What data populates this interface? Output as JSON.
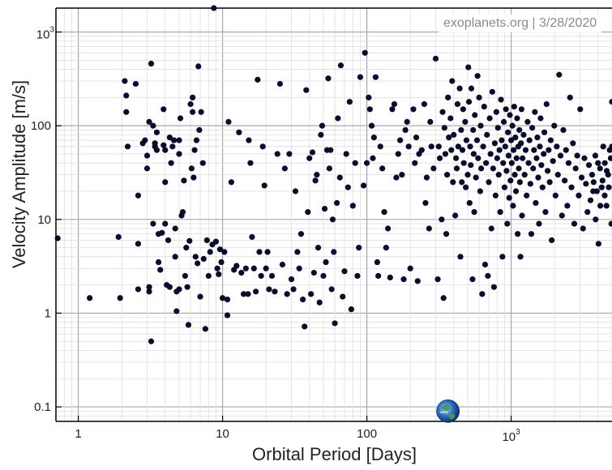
{
  "watermark": "exoplanets.org | 3/28/2020",
  "chart_data": {
    "type": "scatter",
    "title": "",
    "xlabel": "Orbital Period [Days]",
    "ylabel": "Velocity Amplitude [m/s]",
    "x_scale": "log",
    "y_scale": "log",
    "xlim": [
      0.7,
      5000
    ],
    "ylim": [
      0.07,
      1800
    ],
    "grid": true,
    "x_ticks": [
      {
        "value": 1,
        "label": "1"
      },
      {
        "value": 10,
        "label": "10"
      },
      {
        "value": 100,
        "label": "100"
      },
      {
        "value": 1000,
        "label": "10",
        "sup": "3"
      }
    ],
    "y_ticks": [
      {
        "value": 0.1,
        "label": "0.1"
      },
      {
        "value": 1,
        "label": "1"
      },
      {
        "value": 10,
        "label": "10"
      },
      {
        "value": 100,
        "label": "100"
      },
      {
        "value": 1000,
        "label": "10",
        "sup": "3"
      }
    ],
    "marker_color": "#0b0b2a",
    "earth_marker": {
      "x": 365,
      "y": 0.09,
      "label": "Earth"
    },
    "points": [
      [
        0.72,
        6.3
      ],
      [
        1.2,
        1.45
      ],
      [
        1.9,
        6.5
      ],
      [
        1.95,
        1.45
      ],
      [
        2.1,
        300
      ],
      [
        2.15,
        210
      ],
      [
        2.15,
        140
      ],
      [
        2.2,
        60
      ],
      [
        2.5,
        280
      ],
      [
        2.6,
        18
      ],
      [
        2.6,
        5.5
      ],
      [
        2.6,
        1.8
      ],
      [
        2.8,
        65
      ],
      [
        2.9,
        70
      ],
      [
        3.0,
        35
      ],
      [
        3.0,
        48
      ],
      [
        3.1,
        1.7
      ],
      [
        3.1,
        1.9
      ],
      [
        3.1,
        110
      ],
      [
        3.2,
        460
      ],
      [
        3.2,
        0.5
      ],
      [
        3.3,
        9
      ],
      [
        3.3,
        100
      ],
      [
        3.4,
        60
      ],
      [
        3.4,
        65
      ],
      [
        3.5,
        85
      ],
      [
        3.5,
        55
      ],
      [
        3.6,
        3.5
      ],
      [
        3.6,
        7
      ],
      [
        3.7,
        2.9
      ],
      [
        3.8,
        7.2
      ],
      [
        3.9,
        150
      ],
      [
        3.9,
        62
      ],
      [
        4.0,
        9
      ],
      [
        4.0,
        25
      ],
      [
        4.0,
        55
      ],
      [
        4.1,
        2
      ],
      [
        4.2,
        6
      ],
      [
        4.3,
        1.9
      ],
      [
        4.3,
        75
      ],
      [
        4.4,
        40
      ],
      [
        4.5,
        60
      ],
      [
        4.6,
        70
      ],
      [
        4.7,
        8
      ],
      [
        4.7,
        4
      ],
      [
        4.8,
        1.05
      ],
      [
        4.8,
        1.7
      ],
      [
        5.0,
        1.8
      ],
      [
        5.0,
        50
      ],
      [
        5.0,
        70
      ],
      [
        5.1,
        120
      ],
      [
        5.2,
        11
      ],
      [
        5.3,
        12
      ],
      [
        5.4,
        26
      ],
      [
        5.5,
        2.5
      ],
      [
        5.6,
        5
      ],
      [
        5.7,
        1.9
      ],
      [
        5.8,
        0.75
      ],
      [
        5.9,
        5.9
      ],
      [
        6.0,
        170
      ],
      [
        6.1,
        35
      ],
      [
        6.2,
        200
      ],
      [
        6.2,
        140
      ],
      [
        6.3,
        28
      ],
      [
        6.4,
        55
      ],
      [
        6.5,
        4
      ],
      [
        6.6,
        70
      ],
      [
        6.7,
        3.4
      ],
      [
        6.8,
        430
      ],
      [
        6.9,
        90
      ],
      [
        7.0,
        1.5
      ],
      [
        7.1,
        140
      ],
      [
        7.3,
        40
      ],
      [
        7.4,
        3.8
      ],
      [
        7.6,
        0.68
      ],
      [
        7.8,
        6
      ],
      [
        8.0,
        2.5
      ],
      [
        8.2,
        4.5
      ],
      [
        8.5,
        5.4
      ],
      [
        8.7,
        1800
      ],
      [
        9.0,
        5.8
      ],
      [
        9.2,
        3
      ],
      [
        9.4,
        2.6
      ],
      [
        9.6,
        4.8
      ],
      [
        9.8,
        3.5
      ],
      [
        10.0,
        1.45
      ],
      [
        10.3,
        4.5
      ],
      [
        10.8,
        1.4
      ],
      [
        10.8,
        0.95
      ],
      [
        11.0,
        110
      ],
      [
        11.5,
        25
      ],
      [
        12.0,
        2.9
      ],
      [
        12.5,
        3.2
      ],
      [
        13.0,
        85
      ],
      [
        13.5,
        2.7
      ],
      [
        14.0,
        1.6
      ],
      [
        14.5,
        3
      ],
      [
        15.0,
        1.6
      ],
      [
        15.2,
        70
      ],
      [
        15.6,
        40
      ],
      [
        16.0,
        6.5
      ],
      [
        16.5,
        3
      ],
      [
        17.0,
        1.7
      ],
      [
        17.5,
        310
      ],
      [
        18.0,
        4.5
      ],
      [
        18.5,
        2.5
      ],
      [
        19.0,
        60
      ],
      [
        19.5,
        23
      ],
      [
        20.0,
        3
      ],
      [
        20.5,
        4.5
      ],
      [
        21.0,
        1.8
      ],
      [
        22.0,
        2.5
      ],
      [
        23.0,
        1.7
      ],
      [
        24.0,
        50
      ],
      [
        25.0,
        280
      ],
      [
        26.0,
        3.3
      ],
      [
        27.0,
        35
      ],
      [
        28.0,
        1.6
      ],
      [
        29.0,
        50
      ],
      [
        30.0,
        2.3
      ],
      [
        31.0,
        1.8
      ],
      [
        32.0,
        20
      ],
      [
        33.0,
        4.5
      ],
      [
        34.0,
        3
      ],
      [
        35.0,
        7
      ],
      [
        36.0,
        1.4
      ],
      [
        37.0,
        0.72
      ],
      [
        38.0,
        240
      ],
      [
        39.0,
        12
      ],
      [
        40.0,
        45
      ],
      [
        41.0,
        1.6
      ],
      [
        42.0,
        52
      ],
      [
        43.0,
        2.7
      ],
      [
        44.0,
        26
      ],
      [
        45.0,
        30
      ],
      [
        46.0,
        5
      ],
      [
        47.0,
        1.3
      ],
      [
        48.0,
        80
      ],
      [
        49.0,
        100
      ],
      [
        50.0,
        2.5
      ],
      [
        51.0,
        13
      ],
      [
        52.0,
        3.5
      ],
      [
        53.0,
        55
      ],
      [
        54.0,
        320
      ],
      [
        55.0,
        35
      ],
      [
        56.0,
        55
      ],
      [
        57.0,
        1.8
      ],
      [
        58.0,
        10
      ],
      [
        59.0,
        4.5
      ],
      [
        60.0,
        0.78
      ],
      [
        62.0,
        15
      ],
      [
        63.0,
        120
      ],
      [
        65.0,
        28
      ],
      [
        66.0,
        440
      ],
      [
        68.0,
        1.5
      ],
      [
        70.0,
        2.8
      ],
      [
        72.0,
        50
      ],
      [
        74.0,
        22
      ],
      [
        76.0,
        180
      ],
      [
        78.0,
        1.1
      ],
      [
        80.0,
        14
      ],
      [
        83.0,
        40
      ],
      [
        86.0,
        2.5
      ],
      [
        88.0,
        5
      ],
      [
        90.0,
        330
      ],
      [
        95.0,
        23
      ],
      [
        97.0,
        600
      ],
      [
        100.0,
        40
      ],
      [
        103.0,
        200
      ],
      [
        105.0,
        150
      ],
      [
        108.0,
        100
      ],
      [
        110.0,
        45
      ],
      [
        112.0,
        75
      ],
      [
        115.0,
        330
      ],
      [
        118.0,
        3.5
      ],
      [
        120.0,
        2.5
      ],
      [
        124.0,
        60
      ],
      [
        128.0,
        35
      ],
      [
        132.0,
        12
      ],
      [
        136.0,
        5
      ],
      [
        140.0,
        8
      ],
      [
        145.0,
        2.4
      ],
      [
        150.0,
        150
      ],
      [
        155.0,
        170
      ],
      [
        160.0,
        28
      ],
      [
        165.0,
        50
      ],
      [
        170.0,
        70
      ],
      [
        175.0,
        30
      ],
      [
        180.0,
        2.3
      ],
      [
        185.0,
        90
      ],
      [
        190.0,
        110
      ],
      [
        195.0,
        60
      ],
      [
        200.0,
        3
      ],
      [
        210.0,
        150
      ],
      [
        215.0,
        40
      ],
      [
        220.0,
        75
      ],
      [
        225.0,
        2.2
      ],
      [
        230.0,
        50
      ],
      [
        240.0,
        55
      ],
      [
        250.0,
        170
      ],
      [
        255.0,
        15
      ],
      [
        260.0,
        28
      ],
      [
        270.0,
        8
      ],
      [
        275.0,
        110
      ],
      [
        280.0,
        60
      ],
      [
        290.0,
        35
      ],
      [
        300.0,
        520
      ],
      [
        310.0,
        2.3
      ],
      [
        315.0,
        60
      ],
      [
        320.0,
        45
      ],
      [
        330.0,
        10
      ],
      [
        335.0,
        140
      ],
      [
        340.0,
        1.45
      ],
      [
        345.0,
        95
      ],
      [
        350.0,
        50
      ],
      [
        355.0,
        7
      ],
      [
        360.0,
        30
      ],
      [
        365.0,
        200
      ],
      [
        370.0,
        75
      ],
      [
        380.0,
        120
      ],
      [
        385.0,
        55
      ],
      [
        390.0,
        300
      ],
      [
        395.0,
        25
      ],
      [
        400.0,
        80
      ],
      [
        410.0,
        11
      ],
      [
        415.0,
        45
      ],
      [
        420.0,
        35
      ],
      [
        425.0,
        170
      ],
      [
        430.0,
        60
      ],
      [
        440.0,
        250
      ],
      [
        445.0,
        4
      ],
      [
        450.0,
        90
      ],
      [
        455.0,
        25
      ],
      [
        460.0,
        55
      ],
      [
        465.0,
        150
      ],
      [
        470.0,
        40
      ],
      [
        480.0,
        110
      ],
      [
        485.0,
        22
      ],
      [
        490.0,
        70
      ],
      [
        500.0,
        30
      ],
      [
        505.0,
        420
      ],
      [
        510.0,
        180
      ],
      [
        515.0,
        15
      ],
      [
        520.0,
        60
      ],
      [
        525.0,
        38
      ],
      [
        530.0,
        250
      ],
      [
        540.0,
        2.3
      ],
      [
        545.0,
        90
      ],
      [
        550.0,
        50
      ],
      [
        555.0,
        12
      ],
      [
        560.0,
        130
      ],
      [
        570.0,
        28
      ],
      [
        580.0,
        70
      ],
      [
        585.0,
        340
      ],
      [
        590.0,
        45
      ],
      [
        600.0,
        200
      ],
      [
        610.0,
        20
      ],
      [
        615.0,
        100
      ],
      [
        620.0,
        35
      ],
      [
        630.0,
        1.6
      ],
      [
        640.0,
        60
      ],
      [
        650.0,
        160
      ],
      [
        660.0,
        3.3
      ],
      [
        670.0,
        40
      ],
      [
        680.0,
        80
      ],
      [
        690.0,
        2.5
      ],
      [
        700.0,
        25
      ],
      [
        710.0,
        120
      ],
      [
        720.0,
        50
      ],
      [
        730.0,
        8
      ],
      [
        740.0,
        230
      ],
      [
        750.0,
        35
      ],
      [
        760.0,
        1.9
      ],
      [
        770.0,
        65
      ],
      [
        780.0,
        18
      ],
      [
        790.0,
        140
      ],
      [
        800.0,
        45
      ],
      [
        810.0,
        95
      ],
      [
        820.0,
        30
      ],
      [
        830.0,
        55
      ],
      [
        840.0,
        12
      ],
      [
        850.0,
        190
      ],
      [
        860.0,
        70
      ],
      [
        870.0,
        4
      ],
      [
        880.0,
        40
      ],
      [
        890.0,
        110
      ],
      [
        900.0,
        22
      ],
      [
        910.0,
        60
      ],
      [
        920.0,
        150
      ],
      [
        930.0,
        33
      ],
      [
        940.0,
        9
      ],
      [
        950.0,
        85
      ],
      [
        960.0,
        48
      ],
      [
        970.0,
        17
      ],
      [
        980.0,
        130
      ],
      [
        990.0,
        26
      ],
      [
        1000.0,
        70
      ],
      [
        1010.0,
        40
      ],
      [
        1020.0,
        100
      ],
      [
        1030.0,
        14
      ],
      [
        1040.0,
        55
      ],
      [
        1050.0,
        160
      ],
      [
        1060.0,
        30
      ],
      [
        1070.0,
        75
      ],
      [
        1080.0,
        20
      ],
      [
        1090.0,
        45
      ],
      [
        1100.0,
        120
      ],
      [
        1110.0,
        7
      ],
      [
        1120.0,
        60
      ],
      [
        1130.0,
        35
      ],
      [
        1140.0,
        90
      ],
      [
        1150.0,
        25
      ],
      [
        1160.0,
        4
      ],
      [
        1170.0,
        65
      ],
      [
        1180.0,
        150
      ],
      [
        1190.0,
        11
      ],
      [
        1200.0,
        45
      ],
      [
        1220.0,
        80
      ],
      [
        1240.0,
        30
      ],
      [
        1260.0,
        55
      ],
      [
        1280.0,
        18
      ],
      [
        1300.0,
        110
      ],
      [
        1320.0,
        40
      ],
      [
        1340.0,
        70
      ],
      [
        1360.0,
        24
      ],
      [
        1380.0,
        7
      ],
      [
        1400.0,
        95
      ],
      [
        1420.0,
        35
      ],
      [
        1440.0,
        55
      ],
      [
        1460.0,
        140
      ],
      [
        1480.0,
        15
      ],
      [
        1500.0,
        45
      ],
      [
        1520.0,
        75
      ],
      [
        1540.0,
        28
      ],
      [
        1560.0,
        9
      ],
      [
        1580.0,
        60
      ],
      [
        1600.0,
        120
      ],
      [
        1620.0,
        38
      ],
      [
        1650.0,
        22
      ],
      [
        1680.0,
        50
      ],
      [
        1700.0,
        85
      ],
      [
        1730.0,
        12
      ],
      [
        1760.0,
        170
      ],
      [
        1790.0,
        33
      ],
      [
        1820.0,
        55
      ],
      [
        1850.0,
        25
      ],
      [
        1880.0,
        70
      ],
      [
        1910.0,
        6
      ],
      [
        1950.0,
        42
      ],
      [
        1990.0,
        100
      ],
      [
        2030.0,
        18
      ],
      [
        2070.0,
        60
      ],
      [
        2110.0,
        30
      ],
      [
        2150.0,
        350
      ],
      [
        2200.0,
        48
      ],
      [
        2250.0,
        11
      ],
      [
        2300.0,
        90
      ],
      [
        2350.0,
        26
      ],
      [
        2400.0,
        55
      ],
      [
        2450.0,
        14
      ],
      [
        2500.0,
        40
      ],
      [
        2560.0,
        200
      ],
      [
        2620.0,
        22
      ],
      [
        2680.0,
        65
      ],
      [
        2740.0,
        9
      ],
      [
        2800.0,
        35
      ],
      [
        2870.0,
        48
      ],
      [
        2940.0,
        18
      ],
      [
        3010.0,
        150
      ],
      [
        3080.0,
        28
      ],
      [
        3150.0,
        8
      ],
      [
        3220.0,
        45
      ],
      [
        3300.0,
        24
      ],
      [
        3380.0,
        12
      ],
      [
        3460.0,
        38
      ],
      [
        3550.0,
        16
      ],
      [
        3640.0,
        30
      ],
      [
        3730.0,
        25
      ],
      [
        3830.0,
        48
      ],
      [
        3930.0,
        20
      ],
      [
        4030.0,
        5.5
      ],
      [
        4130.0,
        35
      ],
      [
        4240.0,
        22
      ],
      [
        4350.0,
        60
      ],
      [
        4460.0,
        40
      ],
      [
        4580.0,
        14
      ],
      [
        4700.0,
        30
      ],
      [
        4820.0,
        55
      ],
      [
        4950.0,
        9
      ],
      [
        5000.0,
        180
      ],
      [
        5000.0,
        60
      ],
      [
        4900.0,
        45
      ],
      [
        4750.0,
        22
      ],
      [
        4600.0,
        33
      ],
      [
        4450.0,
        18
      ],
      [
        4300.0,
        26
      ],
      [
        4150.0,
        14
      ],
      [
        4000.0,
        40
      ],
      [
        3850.0,
        10
      ],
      [
        3700.0,
        20
      ]
    ]
  }
}
